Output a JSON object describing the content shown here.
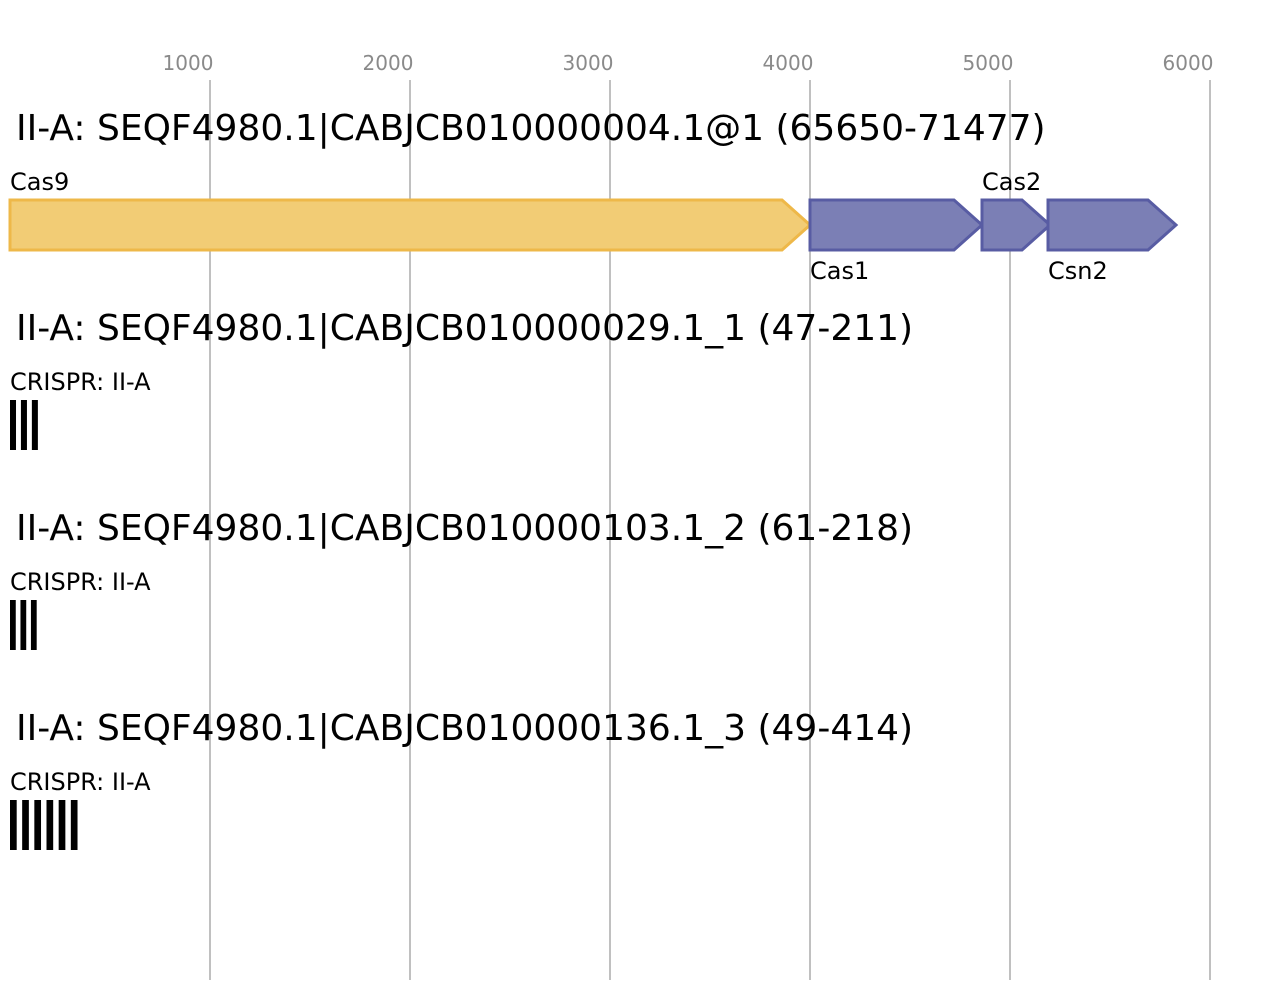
{
  "axis": {
    "ticks": [
      1000,
      2000,
      3000,
      4000,
      5000,
      6000
    ],
    "range": [
      0,
      6300
    ],
    "grid_color": "#c0c0c0"
  },
  "colors": {
    "cas9_fill": "#f2cc75",
    "cas9_stroke": "#eeb849",
    "cas_fill": "#7b7fb5",
    "cas_stroke": "#585ca3",
    "crispr": "#000000"
  },
  "tracks": [
    {
      "title": "II-A: SEQF4980.1|CABJCB010000004.1@1 (65650-71477)",
      "genes": [
        {
          "name": "Cas9",
          "start": 0,
          "end": 4000,
          "label_pos": "above",
          "style": "cas9"
        },
        {
          "name": "Cas1",
          "start": 4000,
          "end": 4860,
          "label_pos": "below",
          "style": "cas"
        },
        {
          "name": "Cas2",
          "start": 4860,
          "end": 5200,
          "label_pos": "above",
          "style": "cas"
        },
        {
          "name": "Csn2",
          "start": 5190,
          "end": 5830,
          "label_pos": "below",
          "style": "cas"
        }
      ]
    },
    {
      "title": "II-A: SEQF4980.1|CABJCB010000029.1_1 (47-211)",
      "crispr": {
        "label": "CRISPR: II-A",
        "start": 0,
        "end": 164,
        "repeats": 3
      }
    },
    {
      "title": "II-A: SEQF4980.1|CABJCB010000103.1_2 (61-218)",
      "crispr": {
        "label": "CRISPR: II-A",
        "start": 0,
        "end": 157,
        "repeats": 3
      }
    },
    {
      "title": "II-A: SEQF4980.1|CABJCB010000136.1_3 (49-414)",
      "crispr": {
        "label": "CRISPR: II-A",
        "start": 0,
        "end": 365,
        "repeats": 6
      }
    }
  ]
}
